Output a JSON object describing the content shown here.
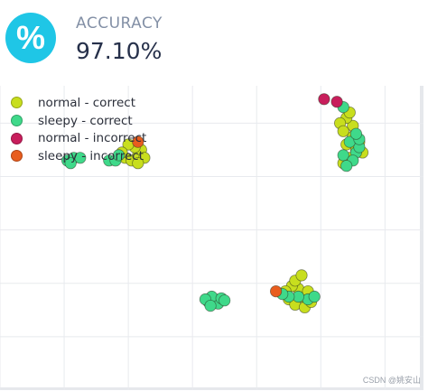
{
  "metric": {
    "icon": "percent-icon",
    "icon_glyph": "%",
    "label": "ACCURACY",
    "value": "97.10%"
  },
  "watermark": "CSDN @姚安山",
  "chart_data": {
    "type": "scatter",
    "grid": true,
    "axes_labels_shown": false,
    "legend_placement": "top-left",
    "xlim": [
      -1,
      5.6
    ],
    "ylim": [
      0,
      5.7
    ],
    "series": [
      {
        "name": "normal - correct",
        "color": "#c8de1e",
        "points": [
          [
            0.95,
            4.35
          ],
          [
            1.05,
            4.3
          ],
          [
            1.15,
            4.4
          ],
          [
            1.2,
            4.5
          ],
          [
            1.1,
            4.55
          ],
          [
            1.0,
            4.6
          ],
          [
            0.9,
            4.45
          ],
          [
            1.25,
            4.35
          ],
          [
            1.15,
            4.25
          ],
          [
            4.35,
            4.25
          ],
          [
            4.45,
            4.35
          ],
          [
            4.55,
            4.5
          ],
          [
            4.4,
            4.6
          ],
          [
            4.5,
            4.75
          ],
          [
            4.6,
            4.65
          ],
          [
            4.65,
            4.45
          ],
          [
            4.5,
            4.95
          ],
          [
            4.4,
            5.1
          ],
          [
            4.3,
            5.0
          ],
          [
            4.45,
            5.2
          ],
          [
            4.35,
            4.85
          ],
          [
            3.5,
            1.7
          ],
          [
            3.6,
            1.6
          ],
          [
            3.7,
            1.75
          ],
          [
            3.65,
            1.9
          ],
          [
            3.55,
            1.95
          ],
          [
            3.75,
            1.55
          ],
          [
            3.85,
            1.65
          ],
          [
            3.6,
            2.05
          ],
          [
            3.7,
            2.15
          ],
          [
            3.45,
            1.85
          ],
          [
            3.8,
            1.85
          ]
        ]
      },
      {
        "name": "sleepy - correct",
        "color": "#3fd98a",
        "points": [
          [
            0.05,
            4.3
          ],
          [
            0.15,
            4.35
          ],
          [
            0.25,
            4.35
          ],
          [
            0.1,
            4.25
          ],
          [
            0.7,
            4.3
          ],
          [
            0.8,
            4.3
          ],
          [
            0.85,
            4.4
          ],
          [
            4.35,
            4.4
          ],
          [
            4.55,
            4.45
          ],
          [
            4.6,
            4.55
          ],
          [
            4.45,
            4.65
          ],
          [
            4.5,
            4.3
          ],
          [
            4.6,
            4.7
          ],
          [
            4.4,
            4.2
          ],
          [
            4.55,
            4.8
          ],
          [
            4.35,
            5.3
          ],
          [
            2.25,
            1.65
          ],
          [
            2.35,
            1.7
          ],
          [
            2.4,
            1.62
          ],
          [
            2.3,
            1.75
          ],
          [
            2.45,
            1.72
          ],
          [
            2.2,
            1.7
          ],
          [
            2.5,
            1.68
          ],
          [
            2.28,
            1.58
          ],
          [
            3.8,
            1.7
          ],
          [
            3.9,
            1.75
          ],
          [
            3.65,
            1.75
          ],
          [
            3.5,
            1.75
          ],
          [
            3.4,
            1.8
          ]
        ]
      },
      {
        "name": "normal - incorrect",
        "color": "#c81e5c",
        "points": [
          [
            4.05,
            5.45
          ],
          [
            4.25,
            5.4
          ]
        ]
      },
      {
        "name": "sleepy - incorrect",
        "color": "#e85d1e",
        "points": [
          [
            1.15,
            4.65
          ],
          [
            3.3,
            1.85
          ]
        ]
      }
    ]
  }
}
